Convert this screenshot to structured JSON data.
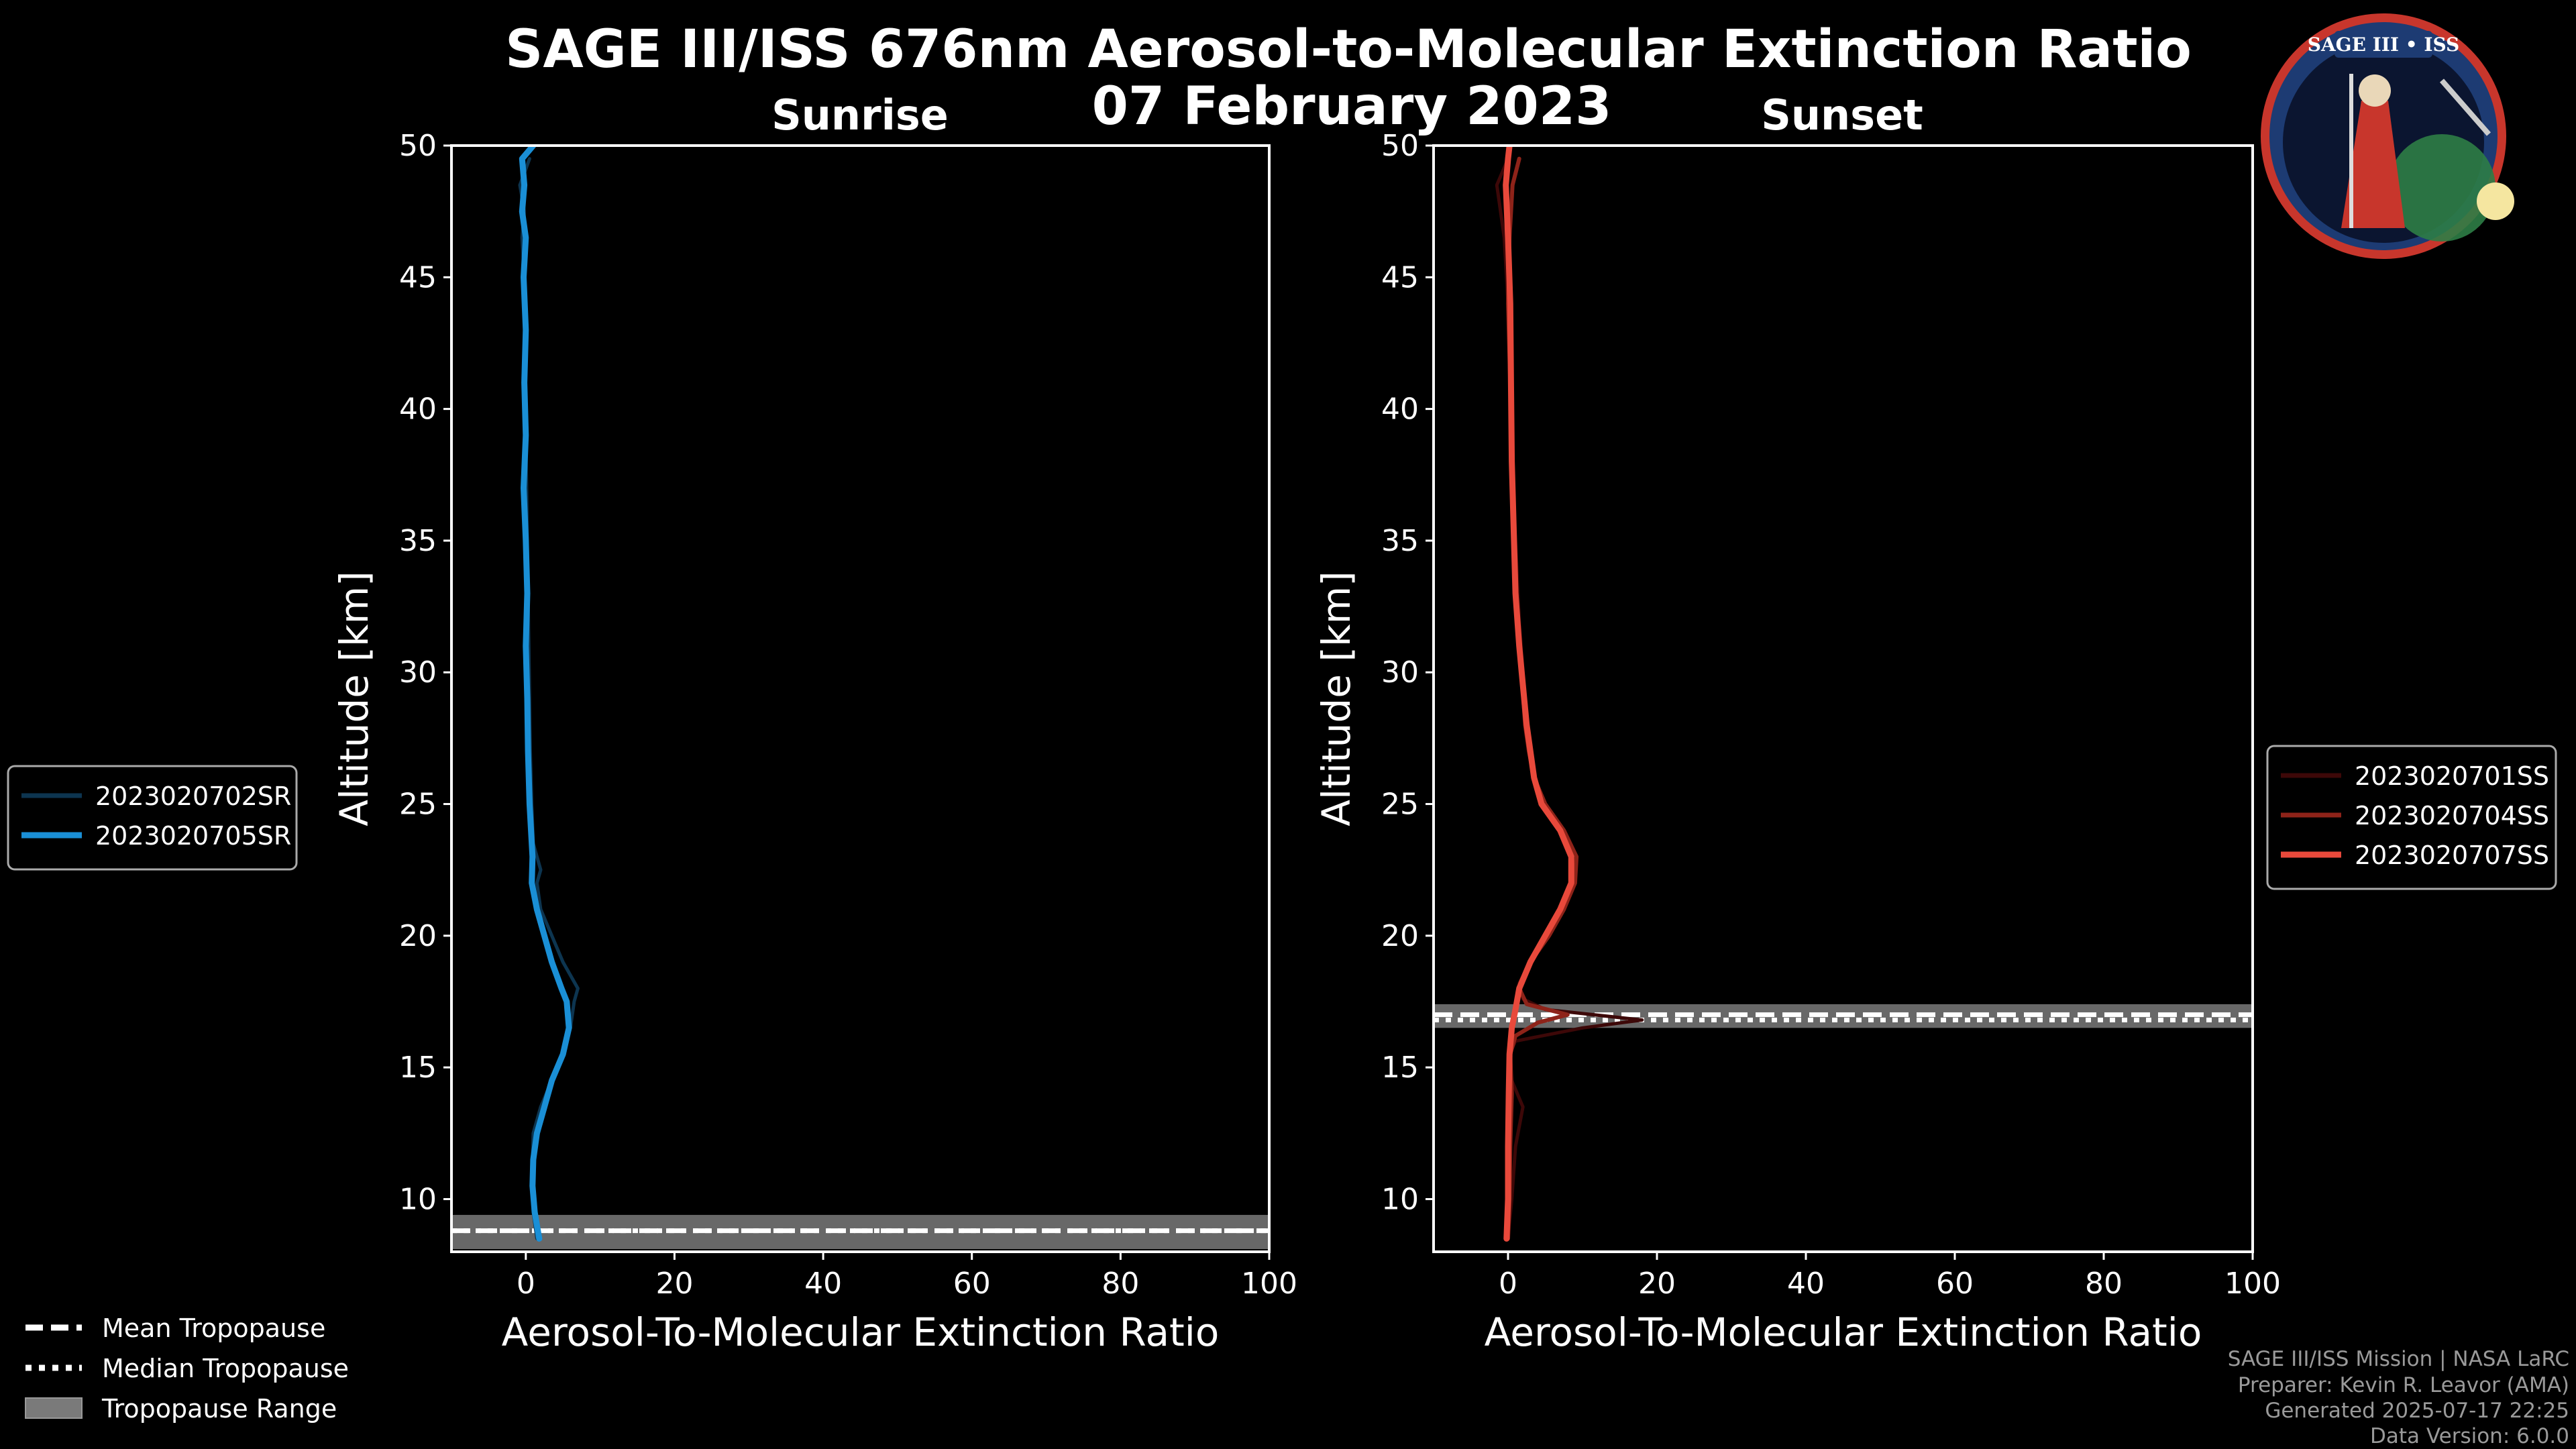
{
  "title": "SAGE III/ISS 676nm Aerosol-to-Molecular Extinction Ratio",
  "date": "07 February 2023",
  "logo": {
    "text": "SAGE III • ISS"
  },
  "credits": [
    "SAGE III/ISS Mission | NASA LaRC",
    "Preparer: Kevin R. Leavor (AMA)",
    "Generated 2025-07-17 22:25",
    "Data Version: 6.0.0"
  ],
  "tropopause_legend": [
    {
      "label": "Mean Tropopause",
      "style": "dashed"
    },
    {
      "label": "Median Tropopause",
      "style": "dotted"
    },
    {
      "label": "Tropopause Range",
      "style": "band"
    }
  ],
  "chart_data": [
    {
      "type": "line",
      "title": "Sunrise",
      "xlabel": "Aerosol-To-Molecular Extinction Ratio",
      "ylabel": "Altitude [km]",
      "xlim": [
        -10,
        100
      ],
      "ylim": [
        8,
        50
      ],
      "xticks": [
        0,
        20,
        40,
        60,
        80,
        100
      ],
      "yticks": [
        10,
        15,
        20,
        25,
        30,
        35,
        40,
        45,
        50
      ],
      "tropopause": {
        "mean": 8.8,
        "median": 8.8,
        "range": [
          8.1,
          9.4
        ]
      },
      "series": [
        {
          "name": "2023020702SR",
          "color": "#0d3550",
          "width": 5,
          "points": [
            [
              1.5,
              8.5
            ],
            [
              1.0,
              9.5
            ],
            [
              0.8,
              10.5
            ],
            [
              0.9,
              11.5
            ],
            [
              1.0,
              12.5
            ],
            [
              2.0,
              13.5
            ],
            [
              3.5,
              14.5
            ],
            [
              5.0,
              15.5
            ],
            [
              6.0,
              16.5
            ],
            [
              6.5,
              17.5
            ],
            [
              7.0,
              18.0
            ],
            [
              5.0,
              19.0
            ],
            [
              3.5,
              20.0
            ],
            [
              2.0,
              21.0
            ],
            [
              1.5,
              22.0
            ],
            [
              2.0,
              22.5
            ],
            [
              1.0,
              23.5
            ],
            [
              0.8,
              25
            ],
            [
              0.6,
              27
            ],
            [
              0.5,
              29
            ],
            [
              0.4,
              31
            ],
            [
              0.3,
              33
            ],
            [
              0.2,
              35
            ],
            [
              0.1,
              37
            ],
            [
              0.0,
              39
            ],
            [
              -0.1,
              41
            ],
            [
              0.0,
              43
            ],
            [
              -0.2,
              45
            ],
            [
              -0.5,
              46.5
            ],
            [
              -0.2,
              47.5
            ],
            [
              -0.8,
              48.5
            ],
            [
              0.5,
              49.5
            ]
          ]
        },
        {
          "name": "2023020705SR",
          "color": "#1a8fd6",
          "width": 9,
          "points": [
            [
              1.8,
              8.5
            ],
            [
              1.2,
              9.5
            ],
            [
              0.9,
              10.5
            ],
            [
              1.0,
              11.5
            ],
            [
              1.5,
              12.5
            ],
            [
              2.5,
              13.5
            ],
            [
              3.5,
              14.5
            ],
            [
              5.0,
              15.5
            ],
            [
              5.8,
              16.5
            ],
            [
              5.5,
              17.5
            ],
            [
              4.8,
              18.0
            ],
            [
              3.5,
              19.0
            ],
            [
              2.5,
              20.0
            ],
            [
              1.5,
              21.0
            ],
            [
              0.8,
              22.0
            ],
            [
              0.9,
              23.0
            ],
            [
              0.5,
              25
            ],
            [
              0.3,
              27
            ],
            [
              0.2,
              29
            ],
            [
              0.0,
              31
            ],
            [
              0.2,
              33
            ],
            [
              0.0,
              35
            ],
            [
              -0.3,
              37
            ],
            [
              0.0,
              39
            ],
            [
              -0.2,
              41
            ],
            [
              0.0,
              43
            ],
            [
              -0.3,
              45
            ],
            [
              0.0,
              46.5
            ],
            [
              -0.5,
              47.5
            ],
            [
              -0.2,
              48.5
            ],
            [
              -0.5,
              49.5
            ],
            [
              1.0,
              50
            ]
          ]
        }
      ]
    },
    {
      "type": "line",
      "title": "Sunset",
      "xlabel": "Aerosol-To-Molecular Extinction Ratio",
      "ylabel": "Altitude [km]",
      "xlim": [
        -10,
        100
      ],
      "ylim": [
        8,
        50
      ],
      "xticks": [
        0,
        20,
        40,
        60,
        80,
        100
      ],
      "yticks": [
        10,
        15,
        20,
        25,
        30,
        35,
        40,
        45,
        50
      ],
      "tropopause": {
        "mean": 17.0,
        "median": 16.8,
        "range": [
          16.5,
          17.4
        ]
      },
      "series": [
        {
          "name": "2023020701SS",
          "color": "#3d0808",
          "width": 5,
          "points": [
            [
              0.0,
              8.5
            ],
            [
              0.5,
              10
            ],
            [
              1.0,
              12
            ],
            [
              2.0,
              13.5
            ],
            [
              0.5,
              14.5
            ],
            [
              0.2,
              15.5
            ],
            [
              1.0,
              16.0
            ],
            [
              10.0,
              16.5
            ],
            [
              18.0,
              16.8
            ],
            [
              5.0,
              17.2
            ],
            [
              2.0,
              17.6
            ],
            [
              1.5,
              18.2
            ],
            [
              3.0,
              19.0
            ],
            [
              5.0,
              20.0
            ],
            [
              7.0,
              21.0
            ],
            [
              8.5,
              22.0
            ],
            [
              8.5,
              23.0
            ],
            [
              7.0,
              24.0
            ],
            [
              5.0,
              25.0
            ],
            [
              3.5,
              26.0
            ],
            [
              3.0,
              27.0
            ],
            [
              2.5,
              28.0
            ],
            [
              2.0,
              30.0
            ],
            [
              1.5,
              32
            ],
            [
              1.0,
              35
            ],
            [
              0.5,
              38
            ],
            [
              0.3,
              41
            ],
            [
              0.0,
              44
            ],
            [
              -0.5,
              46.5
            ],
            [
              -1.5,
              48.5
            ],
            [
              0.0,
              49.5
            ]
          ]
        },
        {
          "name": "2023020704SS",
          "color": "#8e2319",
          "width": 6,
          "points": [
            [
              0.0,
              8.5
            ],
            [
              0.2,
              10
            ],
            [
              0.3,
              12
            ],
            [
              0.5,
              14
            ],
            [
              0.3,
              15.5
            ],
            [
              1.0,
              16.2
            ],
            [
              4.0,
              16.7
            ],
            [
              8.0,
              17.0
            ],
            [
              2.5,
              17.4
            ],
            [
              1.5,
              18.0
            ],
            [
              3.0,
              19.0
            ],
            [
              5.5,
              20.0
            ],
            [
              7.5,
              21.0
            ],
            [
              9.0,
              22.0
            ],
            [
              9.2,
              23.0
            ],
            [
              7.5,
              24.0
            ],
            [
              5.0,
              25.0
            ],
            [
              3.5,
              26.0
            ],
            [
              2.8,
              27.0
            ],
            [
              2.3,
              28.0
            ],
            [
              1.8,
              30
            ],
            [
              1.3,
              32
            ],
            [
              0.8,
              35
            ],
            [
              0.6,
              38
            ],
            [
              0.3,
              41
            ],
            [
              0.0,
              44
            ],
            [
              0.2,
              46.5
            ],
            [
              0.6,
              48.5
            ],
            [
              1.5,
              49.5
            ]
          ]
        },
        {
          "name": "2023020707SS",
          "color": "#e8493b",
          "width": 9,
          "points": [
            [
              -0.2,
              8.5
            ],
            [
              0.0,
              10
            ],
            [
              0.0,
              12
            ],
            [
              0.1,
              14
            ],
            [
              0.2,
              15.5
            ],
            [
              0.5,
              16.5
            ],
            [
              1.0,
              17.2
            ],
            [
              1.5,
              18.0
            ],
            [
              3.0,
              19.0
            ],
            [
              5.0,
              20.0
            ],
            [
              7.0,
              21.0
            ],
            [
              8.5,
              22.0
            ],
            [
              8.5,
              23.0
            ],
            [
              7.0,
              24.0
            ],
            [
              4.5,
              25.0
            ],
            [
              3.5,
              26.0
            ],
            [
              3.0,
              27.0
            ],
            [
              2.5,
              28.0
            ],
            [
              2.0,
              29.5
            ],
            [
              1.5,
              31
            ],
            [
              1.0,
              33
            ],
            [
              0.8,
              35
            ],
            [
              0.5,
              38
            ],
            [
              0.4,
              41
            ],
            [
              0.3,
              44
            ],
            [
              0.0,
              46.5
            ],
            [
              -0.3,
              48.5
            ],
            [
              0.0,
              49.5
            ],
            [
              0.2,
              50
            ]
          ]
        }
      ]
    }
  ]
}
